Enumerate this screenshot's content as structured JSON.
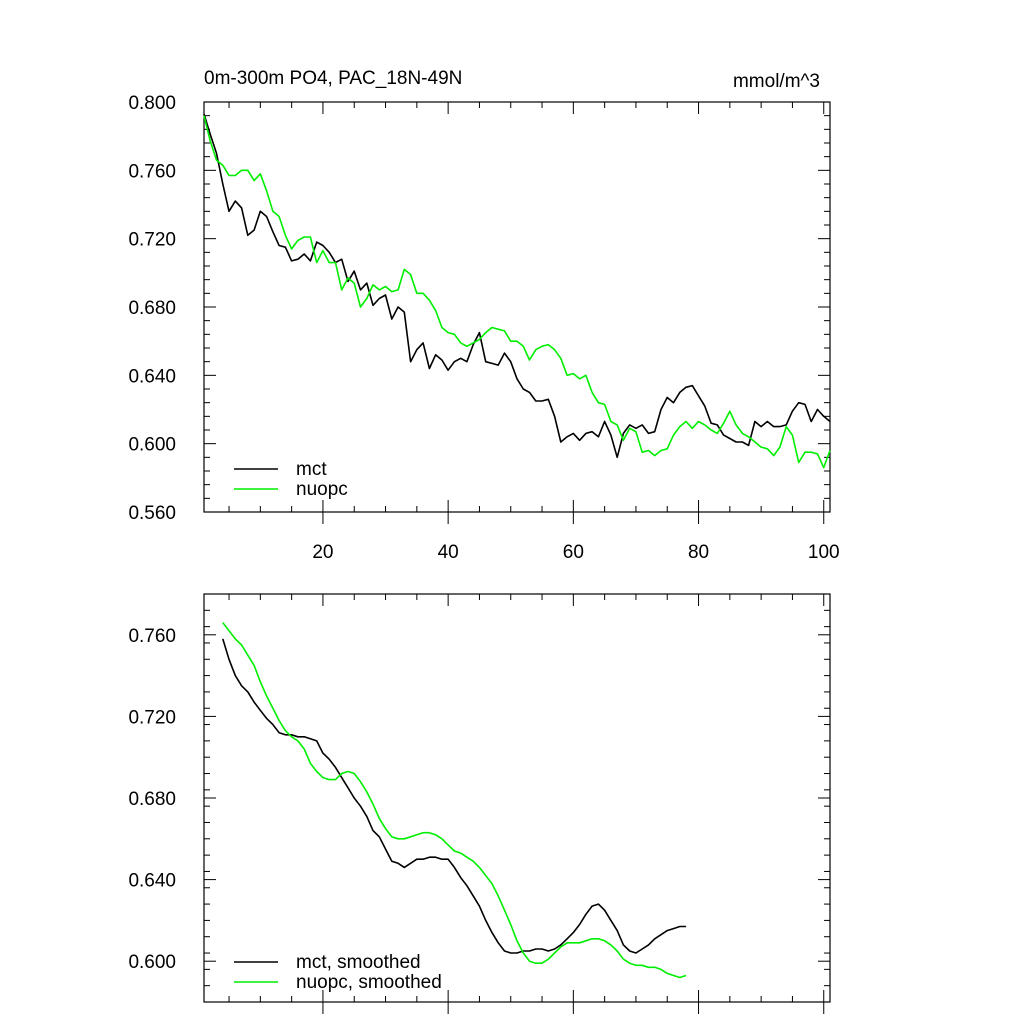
{
  "chart_data": [
    {
      "type": "line",
      "title_left": "0m-300m PO4, PAC_18N-49N",
      "title_right": "mmol/m^3",
      "xlim": [
        1,
        101
      ],
      "ylim": [
        0.56,
        0.8
      ],
      "x_ticks": [
        20,
        40,
        60,
        80,
        100
      ],
      "x_tick_labels": [
        "20",
        "40",
        "60",
        "80",
        "100"
      ],
      "y_ticks": [
        0.56,
        0.6,
        0.64,
        0.68,
        0.72,
        0.76,
        0.8
      ],
      "y_tick_labels": [
        "0.560",
        "0.600",
        "0.640",
        "0.680",
        "0.720",
        "0.760",
        "0.800"
      ],
      "legend_position": "bottom-left",
      "series": [
        {
          "name": "mct",
          "color": "#000000",
          "x_start": 1,
          "values": [
            0.793,
            0.781,
            0.77,
            0.752,
            0.736,
            0.742,
            0.738,
            0.722,
            0.725,
            0.736,
            0.733,
            0.724,
            0.716,
            0.715,
            0.707,
            0.708,
            0.711,
            0.707,
            0.718,
            0.716,
            0.712,
            0.706,
            0.708,
            0.695,
            0.701,
            0.69,
            0.694,
            0.681,
            0.685,
            0.687,
            0.673,
            0.68,
            0.677,
            0.648,
            0.655,
            0.659,
            0.644,
            0.652,
            0.649,
            0.643,
            0.648,
            0.65,
            0.648,
            0.658,
            0.665,
            0.648,
            0.647,
            0.646,
            0.653,
            0.648,
            0.638,
            0.632,
            0.63,
            0.625,
            0.625,
            0.626,
            0.616,
            0.601,
            0.604,
            0.606,
            0.602,
            0.606,
            0.607,
            0.604,
            0.613,
            0.605,
            0.592,
            0.606,
            0.611,
            0.609,
            0.611,
            0.606,
            0.607,
            0.62,
            0.627,
            0.624,
            0.63,
            0.633,
            0.634,
            0.628,
            0.622,
            0.612,
            0.611,
            0.605,
            0.603,
            0.601,
            0.601,
            0.599,
            0.613,
            0.61,
            0.613,
            0.61,
            0.61,
            0.611,
            0.619,
            0.624,
            0.623,
            0.613,
            0.62,
            0.616,
            0.613
          ]
        },
        {
          "name": "nuopc",
          "color": "#00ee00",
          "x_start": 1,
          "values": [
            0.792,
            0.777,
            0.766,
            0.763,
            0.757,
            0.757,
            0.76,
            0.76,
            0.754,
            0.758,
            0.748,
            0.736,
            0.733,
            0.722,
            0.714,
            0.719,
            0.721,
            0.721,
            0.706,
            0.713,
            0.706,
            0.706,
            0.69,
            0.697,
            0.694,
            0.68,
            0.685,
            0.693,
            0.69,
            0.692,
            0.689,
            0.69,
            0.702,
            0.699,
            0.688,
            0.688,
            0.684,
            0.678,
            0.668,
            0.665,
            0.664,
            0.659,
            0.657,
            0.659,
            0.661,
            0.665,
            0.668,
            0.667,
            0.666,
            0.66,
            0.66,
            0.657,
            0.649,
            0.655,
            0.657,
            0.658,
            0.655,
            0.65,
            0.64,
            0.641,
            0.638,
            0.64,
            0.63,
            0.624,
            0.623,
            0.613,
            0.611,
            0.602,
            0.609,
            0.607,
            0.595,
            0.596,
            0.593,
            0.596,
            0.597,
            0.605,
            0.61,
            0.613,
            0.609,
            0.613,
            0.611,
            0.608,
            0.606,
            0.612,
            0.619,
            0.611,
            0.606,
            0.604,
            0.601,
            0.598,
            0.597,
            0.593,
            0.598,
            0.61,
            0.605,
            0.589,
            0.595,
            0.595,
            0.594,
            0.586,
            0.596
          ]
        }
      ],
      "legend_labels": [
        "mct",
        "nuopc"
      ]
    },
    {
      "type": "line",
      "xlim": [
        1,
        101
      ],
      "ylim": [
        0.58,
        0.78
      ],
      "x_ticks": [
        20,
        40,
        60,
        80,
        100
      ],
      "y_ticks": [
        0.6,
        0.64,
        0.68,
        0.72,
        0.76
      ],
      "y_tick_labels": [
        "0.600",
        "0.640",
        "0.680",
        "0.720",
        "0.760"
      ],
      "legend_position": "bottom-left",
      "series": [
        {
          "name": "mct, smoothed",
          "color": "#000000",
          "x_start": 4,
          "values": [
            0.758,
            0.748,
            0.74,
            0.735,
            0.732,
            0.727,
            0.723,
            0.719,
            0.716,
            0.712,
            0.711,
            0.711,
            0.71,
            0.71,
            0.709,
            0.708,
            0.702,
            0.699,
            0.695,
            0.69,
            0.685,
            0.68,
            0.676,
            0.671,
            0.664,
            0.661,
            0.655,
            0.649,
            0.648,
            0.646,
            0.648,
            0.65,
            0.65,
            0.651,
            0.651,
            0.65,
            0.65,
            0.646,
            0.641,
            0.637,
            0.632,
            0.627,
            0.62,
            0.614,
            0.609,
            0.605,
            0.604,
            0.604,
            0.605,
            0.605,
            0.606,
            0.606,
            0.605,
            0.606,
            0.608,
            0.611,
            0.614,
            0.618,
            0.623,
            0.627,
            0.628,
            0.625,
            0.62,
            0.615,
            0.608,
            0.605,
            0.604,
            0.606,
            0.608,
            0.611,
            0.613,
            0.615,
            0.616,
            0.617,
            0.617
          ]
        },
        {
          "name": "nuopc, smoothed",
          "color": "#00ee00",
          "x_start": 4,
          "values": [
            0.766,
            0.762,
            0.758,
            0.755,
            0.75,
            0.745,
            0.737,
            0.73,
            0.724,
            0.718,
            0.713,
            0.71,
            0.708,
            0.704,
            0.697,
            0.693,
            0.69,
            0.689,
            0.689,
            0.692,
            0.693,
            0.692,
            0.688,
            0.683,
            0.677,
            0.67,
            0.665,
            0.661,
            0.66,
            0.66,
            0.661,
            0.662,
            0.663,
            0.663,
            0.662,
            0.66,
            0.657,
            0.654,
            0.653,
            0.651,
            0.649,
            0.646,
            0.642,
            0.638,
            0.632,
            0.625,
            0.618,
            0.61,
            0.604,
            0.6,
            0.599,
            0.599,
            0.601,
            0.604,
            0.607,
            0.609,
            0.609,
            0.609,
            0.61,
            0.611,
            0.611,
            0.61,
            0.608,
            0.605,
            0.601,
            0.599,
            0.598,
            0.598,
            0.597,
            0.597,
            0.596,
            0.594,
            0.593,
            0.592,
            0.593
          ]
        }
      ],
      "legend_labels": [
        "mct, smoothed",
        "nuopc, smoothed"
      ]
    }
  ]
}
